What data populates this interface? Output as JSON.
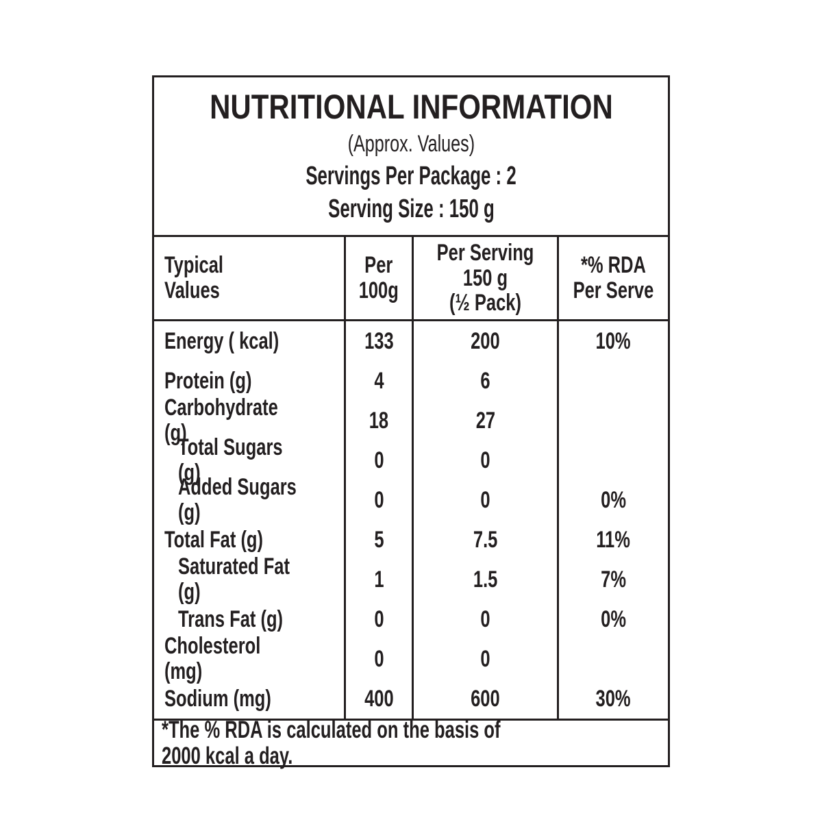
{
  "table": {
    "title": "NUTRITIONAL INFORMATION",
    "subtitle": "(Approx. Values)",
    "servings_per_package": "Servings Per Package : 2",
    "serving_size": "Serving Size : 150 g",
    "columns": [
      {
        "label": "Typical\nValues"
      },
      {
        "label": "Per\n100g"
      },
      {
        "label": "Per Serving\n150 g\n(½ Pack)"
      },
      {
        "label": "*% RDA\nPer Serve"
      }
    ],
    "rows": [
      {
        "label": "Energy ( kcal)",
        "per_100g": "133",
        "per_serving": "200",
        "rda": "10%",
        "indent": false
      },
      {
        "label": "Protein (g)",
        "per_100g": "4",
        "per_serving": "6",
        "rda": "",
        "indent": false
      },
      {
        "label": "Carbohydrate (g)",
        "per_100g": "18",
        "per_serving": "27",
        "rda": "",
        "indent": false
      },
      {
        "label": "Total Sugars (g)",
        "per_100g": "0",
        "per_serving": "0",
        "rda": "",
        "indent": true
      },
      {
        "label": "Added Sugars (g)",
        "per_100g": "0",
        "per_serving": "0",
        "rda": "0%",
        "indent": true
      },
      {
        "label": "Total Fat (g)",
        "per_100g": "5",
        "per_serving": "7.5",
        "rda": "11%",
        "indent": false
      },
      {
        "label": "Saturated Fat (g)",
        "per_100g": "1",
        "per_serving": "1.5",
        "rda": "7%",
        "indent": true
      },
      {
        "label": "Trans Fat (g)",
        "per_100g": "0",
        "per_serving": "0",
        "rda": "0%",
        "indent": true
      },
      {
        "label": "Cholesterol (mg)",
        "per_100g": "0",
        "per_serving": "0",
        "rda": "",
        "indent": false
      },
      {
        "label": "Sodium (mg)",
        "per_100g": "400",
        "per_serving": "600",
        "rda": "30%",
        "indent": false
      }
    ],
    "footnote": "*The % RDA is calculated on the basis of 2000 kcal a day."
  },
  "colors": {
    "text": "#231f20",
    "border": "#231f20",
    "background": "#ffffff"
  }
}
